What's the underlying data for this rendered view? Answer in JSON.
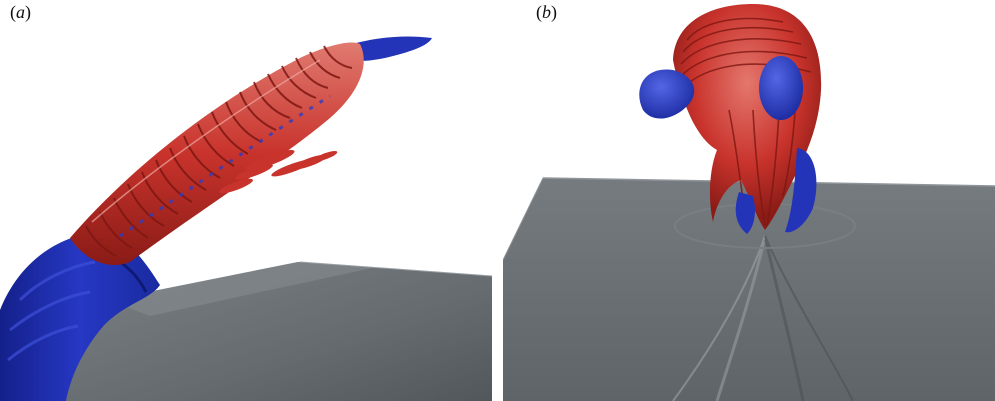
{
  "panels": [
    {
      "id": "a",
      "label_open": "(",
      "label_letter": "a",
      "label_close": ")"
    },
    {
      "id": "b",
      "label_open": "(",
      "label_letter": "b",
      "label_close": ")"
    }
  ],
  "colors": {
    "background": "#ffffff",
    "vortex_red": "#c8332c",
    "vortex_red_dark": "#8a1b16",
    "vortex_red_light": "#e8776e",
    "vortex_blue": "#1e2fb0",
    "vortex_blue_light": "#4a5be0",
    "wall_gray": "#6c7276",
    "wall_gray_dark": "#4f5458",
    "wall_gray_light": "#8d9397"
  }
}
